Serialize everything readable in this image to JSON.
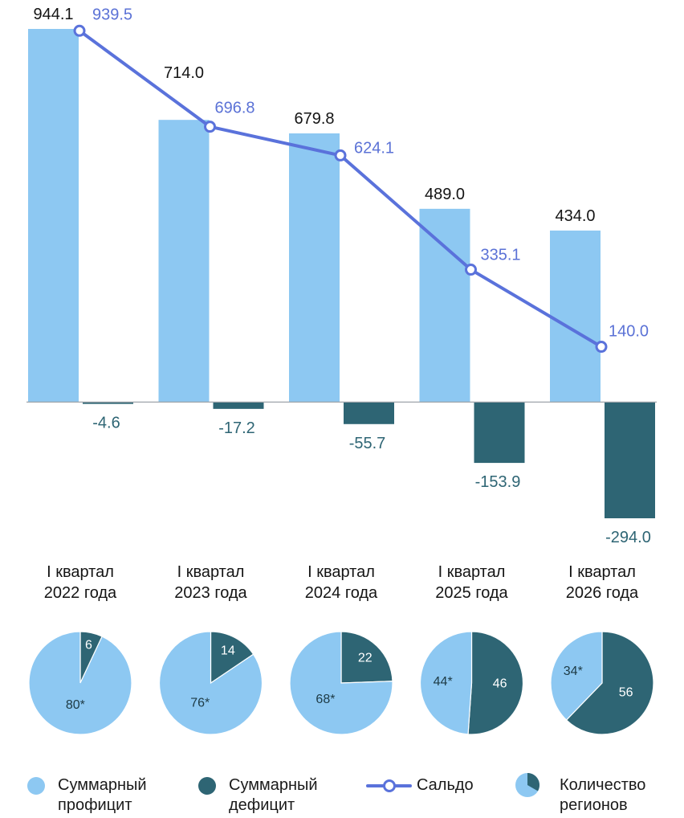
{
  "chart_data": [
    {
      "type": "bar",
      "categories": [
        "I квартал 2022 года",
        "I квартал 2023 года",
        "I квартал 2024 года",
        "I квартал 2025 года",
        "I квартал 2026 года"
      ],
      "series": [
        {
          "name": "Суммарный профицит",
          "type": "bar",
          "color": "#8dc8f2",
          "icon": "light-blue-dot-icon",
          "values": [
            944.1,
            714.0,
            679.8,
            489.0,
            434.0
          ],
          "data_labels": [
            "944.1",
            "714.0",
            "679.8",
            "489.0",
            "434.0"
          ]
        },
        {
          "name": "Суммарный дефицит",
          "type": "bar",
          "color": "#2e6574",
          "icon": "dark-teal-dot-icon",
          "values": [
            -4.6,
            -17.2,
            -55.7,
            -153.9,
            -294.0
          ],
          "data_labels": [
            "-4.6",
            "-17.2",
            "-55.7",
            "-153.9",
            "-294.0"
          ]
        },
        {
          "name": "Сальдо",
          "type": "line",
          "color": "#5a72db",
          "icon": "line-with-marker-icon",
          "values": [
            939.5,
            696.8,
            624.1,
            335.1,
            140.0
          ],
          "data_labels": [
            "939.5",
            "696.8",
            "624.1",
            "335.1",
            "140.0"
          ]
        }
      ],
      "ylim": [
        -294.0,
        944.1
      ],
      "grid": false,
      "legend_position": "bottom"
    },
    {
      "type": "pie",
      "values": [
        6,
        80
      ],
      "data_labels": [
        "6",
        "80*"
      ],
      "colors": [
        "#2e6574",
        "#8dc8f2"
      ]
    },
    {
      "type": "pie",
      "values": [
        14,
        76
      ],
      "data_labels": [
        "14",
        "76*"
      ],
      "colors": [
        "#2e6574",
        "#8dc8f2"
      ]
    },
    {
      "type": "pie",
      "values": [
        22,
        68
      ],
      "data_labels": [
        "22",
        "68*"
      ],
      "colors": [
        "#2e6574",
        "#8dc8f2"
      ]
    },
    {
      "type": "pie",
      "values": [
        46,
        44
      ],
      "data_labels": [
        "46",
        "44*"
      ],
      "colors": [
        "#2e6574",
        "#8dc8f2"
      ]
    },
    {
      "type": "pie",
      "values": [
        56,
        34
      ],
      "data_labels": [
        "56",
        "34*"
      ],
      "colors": [
        "#2e6574",
        "#8dc8f2"
      ]
    }
  ],
  "legend": {
    "regions_label": "Количество регионов",
    "regions_icon": "pie-icon"
  },
  "colors": {
    "axis": "#9ea4aa",
    "text": "#141414",
    "saldo_label": "#5b72d6",
    "pie_profit_label": "#1d3a44",
    "pie_deficit_label": "#ffffff"
  }
}
